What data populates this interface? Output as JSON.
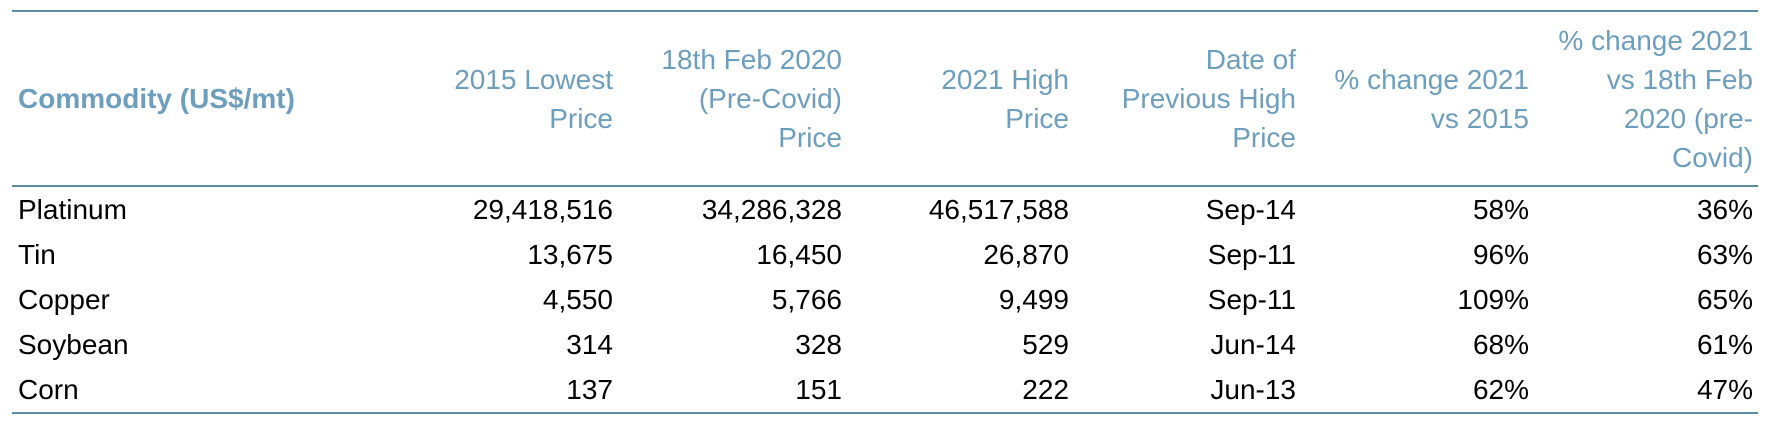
{
  "colors": {
    "header_text": "#6D9EBD",
    "border": "#5B8DA1",
    "body_text": "#000000",
    "background": "#FFFFFF"
  },
  "table": {
    "columns": [
      {
        "label": "Commodity (US$/mt)",
        "align": "left"
      },
      {
        "label": "2015 Lowest Price",
        "align": "right"
      },
      {
        "label": "18th Feb 2020 (Pre-Covid) Price",
        "align": "right"
      },
      {
        "label": "2021 High Price",
        "align": "right"
      },
      {
        "label": "Date of Previous High Price",
        "align": "right"
      },
      {
        "label": "% change 2021 vs 2015",
        "align": "right"
      },
      {
        "label": "% change 2021 vs 18th Feb 2020 (pre-Covid)",
        "align": "right"
      }
    ],
    "rows": [
      [
        "Platinum",
        "29,418,516",
        "34,286,328",
        "46,517,588",
        "Sep-14",
        "58%",
        "36%"
      ],
      [
        "Tin",
        "13,675",
        "16,450",
        "26,870",
        "Sep-11",
        "96%",
        "63%"
      ],
      [
        "Copper",
        "4,550",
        "5,766",
        "9,499",
        "Sep-11",
        "109%",
        "65%"
      ],
      [
        "Soybean",
        "314",
        "328",
        "529",
        "Jun-14",
        "68%",
        "61%"
      ],
      [
        "Corn",
        "137",
        "151",
        "222",
        "Jun-13",
        "62%",
        "47%"
      ]
    ]
  },
  "chart_data": {
    "type": "table",
    "title": "Commodity (US$/mt) price comparison",
    "columns": [
      "Commodity (US$/mt)",
      "2015 Lowest Price",
      "18th Feb 2020 (Pre-Covid) Price",
      "2021 High Price",
      "Date of Previous High Price",
      "% change 2021 vs 2015",
      "% change 2021 vs 18th Feb 2020 (pre-Covid)"
    ],
    "rows": [
      {
        "commodity": "Platinum",
        "lowest_2015": 29418516,
        "pre_covid_2020": 34286328,
        "high_2021": 46517588,
        "date_previous_high": "Sep-14",
        "pct_change_vs_2015": "58%",
        "pct_change_vs_2020": "36%"
      },
      {
        "commodity": "Tin",
        "lowest_2015": 13675,
        "pre_covid_2020": 16450,
        "high_2021": 26870,
        "date_previous_high": "Sep-11",
        "pct_change_vs_2015": "96%",
        "pct_change_vs_2020": "63%"
      },
      {
        "commodity": "Copper",
        "lowest_2015": 4550,
        "pre_covid_2020": 5766,
        "high_2021": 9499,
        "date_previous_high": "Sep-11",
        "pct_change_vs_2015": "109%",
        "pct_change_vs_2020": "65%"
      },
      {
        "commodity": "Soybean",
        "lowest_2015": 314,
        "pre_covid_2020": 328,
        "high_2021": 529,
        "date_previous_high": "Jun-14",
        "pct_change_vs_2015": "68%",
        "pct_change_vs_2020": "61%"
      },
      {
        "commodity": "Corn",
        "lowest_2015": 137,
        "pre_covid_2020": 151,
        "high_2021": 222,
        "date_previous_high": "Jun-13",
        "pct_change_vs_2015": "62%",
        "pct_change_vs_2020": "47%"
      }
    ]
  }
}
